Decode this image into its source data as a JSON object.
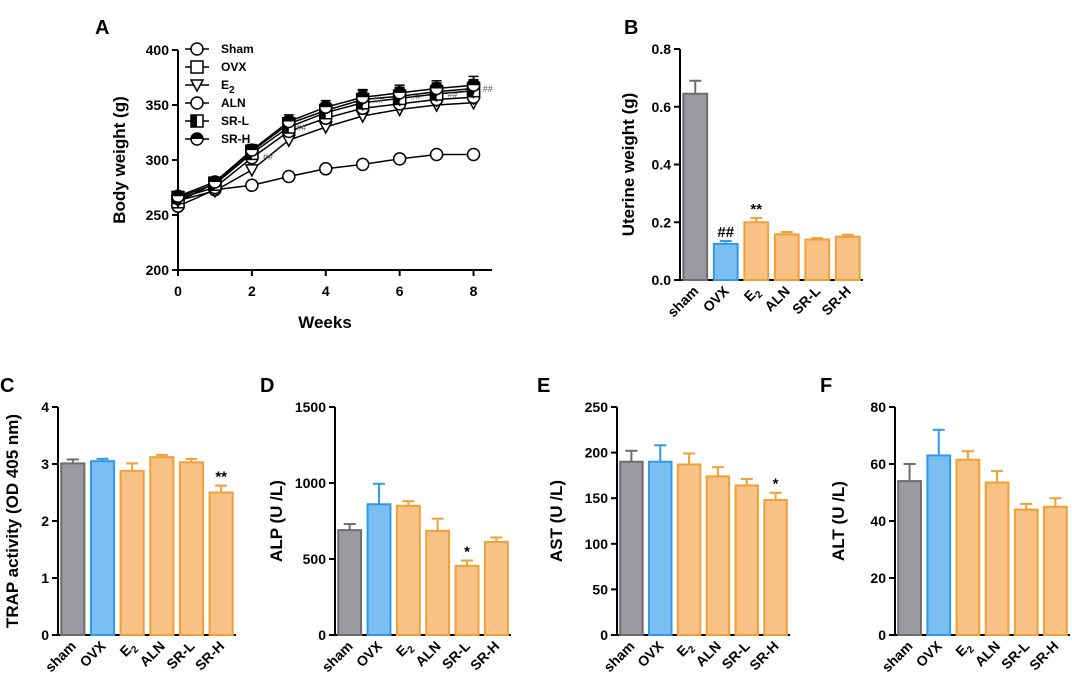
{
  "colors": {
    "sham": "#9b9a9f",
    "sham_edge": "#6d6c70",
    "ovx": "#7bbff2",
    "ovx_edge": "#2f9ae8",
    "treat": "#f8c287",
    "treat_edge": "#f0a037",
    "axis": "#000000"
  },
  "chart_data": [
    {
      "id": "A",
      "type": "line",
      "panel_label": "A",
      "xlabel": "Weeks",
      "ylabel": "Body weight (g)",
      "xlim": [
        0,
        8.5
      ],
      "ylim": [
        200,
        400
      ],
      "xticks": [
        "0",
        "2",
        "4",
        "6",
        "8"
      ],
      "yticks": [
        "200",
        "250",
        "300",
        "350",
        "400"
      ],
      "x": [
        0,
        1,
        2,
        3,
        4,
        5,
        6,
        7,
        8
      ],
      "series": [
        {
          "name": "Sham",
          "marker": "circle",
          "values": [
            258,
            273,
            277,
            285,
            292,
            296,
            301,
            305,
            305
          ],
          "err": [
            2,
            2,
            2,
            2,
            2,
            2,
            2,
            2,
            2
          ]
        },
        {
          "name": "OVX",
          "marker": "square",
          "values": [
            262,
            279,
            308,
            333,
            345,
            355,
            358,
            362,
            365
          ],
          "err": [
            4,
            4,
            5,
            6,
            7,
            8,
            8,
            8,
            8
          ]
        },
        {
          "name": "E",
          "sub": "2",
          "marker": "triangle-down",
          "values": [
            263,
            272,
            291,
            318,
            330,
            340,
            346,
            350,
            352
          ],
          "err": [
            4,
            4,
            4,
            5,
            5,
            6,
            6,
            6,
            6
          ]
        },
        {
          "name": "ALN",
          "marker": "circle",
          "values": [
            265,
            275,
            302,
            326,
            338,
            347,
            351,
            355,
            357
          ],
          "err": [
            4,
            4,
            5,
            5,
            6,
            6,
            6,
            7,
            7
          ]
        },
        {
          "name": "SR-L",
          "marker": "half-square",
          "values": [
            266,
            278,
            306,
            330,
            343,
            352,
            356,
            360,
            363
          ],
          "err": [
            4,
            4,
            5,
            6,
            6,
            7,
            7,
            7,
            7
          ]
        },
        {
          "name": "SR-H",
          "marker": "half-circle",
          "values": [
            267,
            280,
            309,
            335,
            348,
            357,
            361,
            365,
            368
          ],
          "err": [
            4,
            4,
            5,
            6,
            6,
            7,
            7,
            7,
            8
          ]
        }
      ],
      "annotations": [
        {
          "text": "##",
          "x": 2.3,
          "y": 300
        },
        {
          "text": "##",
          "x": 3.2,
          "y": 327
        },
        {
          "text": "##",
          "x": 5.3,
          "y": 352
        },
        {
          "text": "##",
          "x": 6.3,
          "y": 355
        },
        {
          "text": "##",
          "x": 7.3,
          "y": 357
        },
        {
          "text": "##",
          "x": 8.25,
          "y": 362
        }
      ]
    },
    {
      "id": "B",
      "type": "bar",
      "panel_label": "B",
      "ylabel": "Uterine weight (g)",
      "ylim": [
        0,
        0.8
      ],
      "yticks": [
        "0.0",
        "0.2",
        "0.4",
        "0.6",
        "0.8"
      ],
      "categories": [
        {
          "label": "sham"
        },
        {
          "label": "OVX"
        },
        {
          "label": "E",
          "sub": "2"
        },
        {
          "label": "ALN"
        },
        {
          "label": "SR-L"
        },
        {
          "label": "SR-H"
        }
      ],
      "values": [
        0.645,
        0.125,
        0.2,
        0.158,
        0.14,
        0.15
      ],
      "err": [
        0.045,
        0.01,
        0.015,
        0.008,
        0.005,
        0.007
      ],
      "groups": [
        "sham",
        "ovx",
        "treat",
        "treat",
        "treat",
        "treat"
      ],
      "annotations": [
        {
          "index": 1,
          "text": "##"
        },
        {
          "index": 2,
          "text": "**"
        }
      ]
    },
    {
      "id": "C",
      "type": "bar",
      "panel_label": "C",
      "ylabel": "TRAP activity (OD 405 nm)",
      "ylim": [
        0,
        4
      ],
      "yticks": [
        "0",
        "1",
        "2",
        "3",
        "4"
      ],
      "categories": [
        {
          "label": "sham"
        },
        {
          "label": "OVX"
        },
        {
          "label": "E",
          "sub": "2"
        },
        {
          "label": "ALN"
        },
        {
          "label": "SR-L"
        },
        {
          "label": "SR-H"
        }
      ],
      "values": [
        3.01,
        3.05,
        2.88,
        3.12,
        3.03,
        2.5
      ],
      "err": [
        0.07,
        0.04,
        0.13,
        0.04,
        0.06,
        0.12
      ],
      "groups": [
        "sham",
        "ovx",
        "treat",
        "treat",
        "treat",
        "treat"
      ],
      "annotations": [
        {
          "index": 5,
          "text": "**"
        }
      ]
    },
    {
      "id": "D",
      "type": "bar",
      "panel_label": "D",
      "ylabel": "ALP (U /L)",
      "ylim": [
        0,
        1500
      ],
      "yticks": [
        "0",
        "500",
        "1000",
        "1500"
      ],
      "categories": [
        {
          "label": "sham"
        },
        {
          "label": "OVX"
        },
        {
          "label": "E",
          "sub": "2"
        },
        {
          "label": "ALN"
        },
        {
          "label": "SR-L"
        },
        {
          "label": "SR-H"
        }
      ],
      "values": [
        690,
        860,
        850,
        685,
        455,
        612
      ],
      "err": [
        40,
        135,
        30,
        80,
        35,
        30
      ],
      "groups": [
        "sham",
        "ovx",
        "treat",
        "treat",
        "treat",
        "treat"
      ],
      "annotations": [
        {
          "index": 4,
          "text": "*"
        }
      ]
    },
    {
      "id": "E",
      "type": "bar",
      "panel_label": "E",
      "ylabel": "AST (U /L)",
      "ylim": [
        0,
        250
      ],
      "yticks": [
        "0",
        "50",
        "100",
        "150",
        "200",
        "250"
      ],
      "categories": [
        {
          "label": "sham"
        },
        {
          "label": "OVX"
        },
        {
          "label": "E",
          "sub": "2"
        },
        {
          "label": "ALN"
        },
        {
          "label": "SR-L"
        },
        {
          "label": "SR-H"
        }
      ],
      "values": [
        190,
        190,
        187,
        174,
        164,
        148
      ],
      "err": [
        12,
        18,
        12,
        10,
        7,
        8
      ],
      "groups": [
        "sham",
        "ovx",
        "treat",
        "treat",
        "treat",
        "treat"
      ],
      "annotations": [
        {
          "index": 5,
          "text": "*"
        }
      ]
    },
    {
      "id": "F",
      "type": "bar",
      "panel_label": "F",
      "ylabel": "ALT (U /L)",
      "ylim": [
        0,
        80
      ],
      "yticks": [
        "0",
        "20",
        "40",
        "60",
        "80"
      ],
      "categories": [
        {
          "label": "sham"
        },
        {
          "label": "OVX"
        },
        {
          "label": "E",
          "sub": "2"
        },
        {
          "label": "ALN"
        },
        {
          "label": "SR-L"
        },
        {
          "label": "SR-H"
        }
      ],
      "values": [
        54,
        63,
        61.5,
        53.5,
        44,
        45
      ],
      "err": [
        6,
        9,
        3,
        4,
        2,
        3
      ],
      "groups": [
        "sham",
        "ovx",
        "treat",
        "treat",
        "treat",
        "treat"
      ],
      "annotations": []
    }
  ]
}
